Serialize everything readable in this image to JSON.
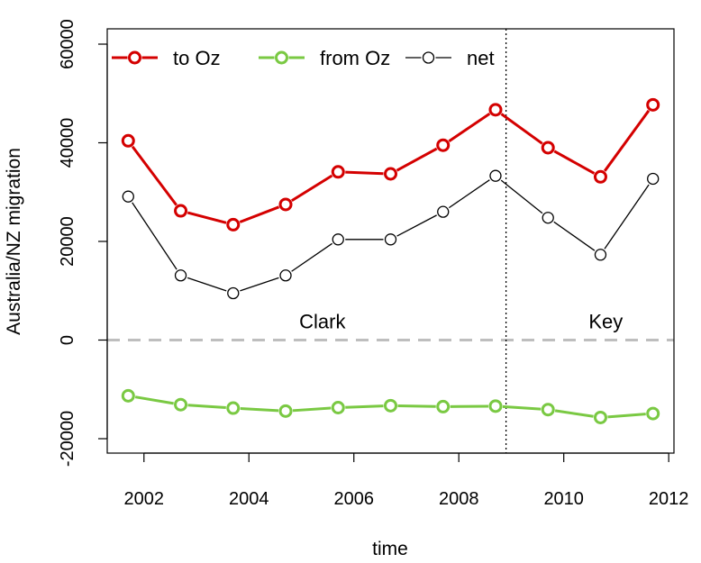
{
  "chart_data": {
    "type": "line",
    "title": "",
    "xlabel": "time",
    "ylabel": "Australia/NZ migration",
    "xlim": [
      2001.3,
      2012.1
    ],
    "ylim": [
      -20000,
      60000
    ],
    "x_ticks": [
      2002,
      2004,
      2006,
      2008,
      2010,
      2012
    ],
    "y_ticks": [
      -20000,
      0,
      20000,
      40000,
      60000
    ],
    "x_tick_labels": [
      "2002",
      "2004",
      "2006",
      "2008",
      "2010",
      "2012"
    ],
    "y_tick_labels": [
      "-20000",
      "0",
      "20000",
      "40000",
      "60000"
    ],
    "x": [
      2001.7,
      2002.7,
      2003.7,
      2004.7,
      2005.7,
      2006.7,
      2007.7,
      2008.7,
      2009.7,
      2010.7,
      2011.7
    ],
    "series": [
      {
        "name": "to Oz",
        "color": "#d40000",
        "style": "thick-line-open-circles",
        "values": [
          40400,
          26200,
          23400,
          27500,
          34100,
          33700,
          39500,
          46700,
          39000,
          33100,
          47700
        ]
      },
      {
        "name": "from Oz",
        "color": "#7ac943",
        "style": "thick-line-open-circles",
        "values": [
          -11300,
          -13100,
          -13800,
          -14400,
          -13700,
          -13300,
          -13500,
          -13400,
          -14100,
          -15700,
          -14900
        ]
      },
      {
        "name": "net",
        "color": "#000000",
        "style": "thin-line-open-circles",
        "values": [
          29100,
          13100,
          9500,
          13100,
          20400,
          20400,
          26000,
          33300,
          24800,
          17300,
          32700
        ]
      }
    ],
    "reference_lines": [
      {
        "orientation": "horizontal",
        "value": 0,
        "style": "dashed",
        "color": "#bebebe"
      },
      {
        "orientation": "vertical",
        "value": 2008.9,
        "style": "dotted",
        "color": "#000000"
      }
    ],
    "annotations": [
      {
        "text": "Clark",
        "x": 2005.4,
        "y": 2400
      },
      {
        "text": "Key",
        "x": 2010.8,
        "y": 2400
      }
    ],
    "legend": {
      "placement": "top-left",
      "entries": [
        "to Oz",
        "from Oz",
        "net"
      ]
    },
    "grid": false
  }
}
